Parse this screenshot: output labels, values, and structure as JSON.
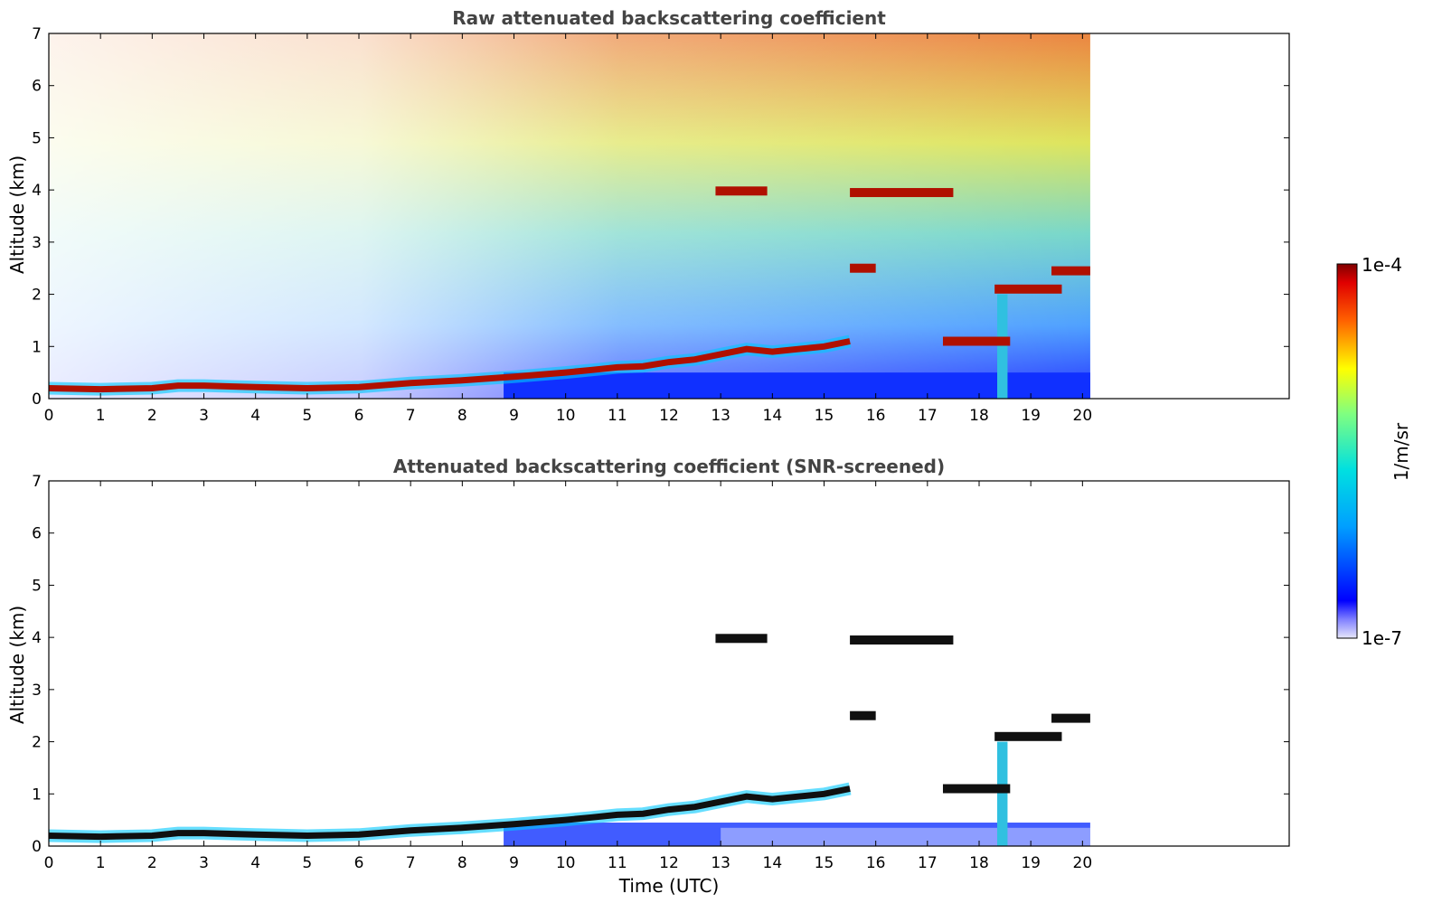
{
  "chart_data": [
    {
      "type": "heatmap",
      "title": "Raw attenuated backscattering coefficient",
      "xlabel": "",
      "ylabel": "Altitude (km)",
      "xlim": [
        0,
        24
      ],
      "ylim": [
        0,
        7
      ],
      "xticks": [
        0,
        1,
        2,
        3,
        4,
        5,
        6,
        7,
        8,
        9,
        10,
        11,
        12,
        13,
        14,
        15,
        16,
        17,
        18,
        19,
        20
      ],
      "yticks": [
        0,
        1,
        2,
        3,
        4,
        5,
        6,
        7
      ],
      "data_end_time": 20.15,
      "layers": [
        {
          "kind": "boundary_layer",
          "t": [
            0,
            1,
            2,
            2.5,
            3,
            4,
            5,
            6,
            7,
            8,
            9,
            10,
            10.5,
            11,
            11.5,
            12,
            12.5,
            13,
            13.5,
            14,
            14.5,
            15,
            15.5
          ],
          "alt": [
            0.2,
            0.18,
            0.2,
            0.25,
            0.25,
            0.22,
            0.2,
            0.22,
            0.3,
            0.35,
            0.42,
            0.5,
            0.55,
            0.6,
            0.62,
            0.7,
            0.75,
            0.85,
            0.95,
            0.9,
            0.95,
            1.0,
            1.1
          ]
        },
        {
          "kind": "cloud",
          "t0": 15.5,
          "t1": 17.5,
          "alt": 3.95
        },
        {
          "kind": "cloud",
          "t0": 12.9,
          "t1": 13.9,
          "alt": 3.98
        },
        {
          "kind": "cloud",
          "t0": 15.5,
          "t1": 16.0,
          "alt": 2.5
        },
        {
          "kind": "cloud",
          "t0": 19.4,
          "t1": 20.15,
          "alt": 2.45
        },
        {
          "kind": "cloud",
          "t0": 18.3,
          "t1": 19.6,
          "alt": 2.1
        },
        {
          "kind": "cloud",
          "t0": 17.3,
          "t1": 18.6,
          "alt": 1.1
        }
      ]
    },
    {
      "type": "heatmap",
      "title": "Attenuated backscattering coefficient (SNR-screened)",
      "xlabel": "Time (UTC)",
      "ylabel": "Altitude (km)",
      "xlim": [
        0,
        24
      ],
      "ylim": [
        0,
        7
      ],
      "xticks": [
        0,
        1,
        2,
        3,
        4,
        5,
        6,
        7,
        8,
        9,
        10,
        11,
        12,
        13,
        14,
        15,
        16,
        17,
        18,
        19,
        20
      ],
      "yticks": [
        0,
        1,
        2,
        3,
        4,
        5,
        6,
        7
      ],
      "data_end_time": 20.15
    }
  ],
  "colorbar": {
    "label": "1/m/sr",
    "max_label": "1e-4",
    "min_label": "1e-7",
    "colormap": "jet"
  }
}
